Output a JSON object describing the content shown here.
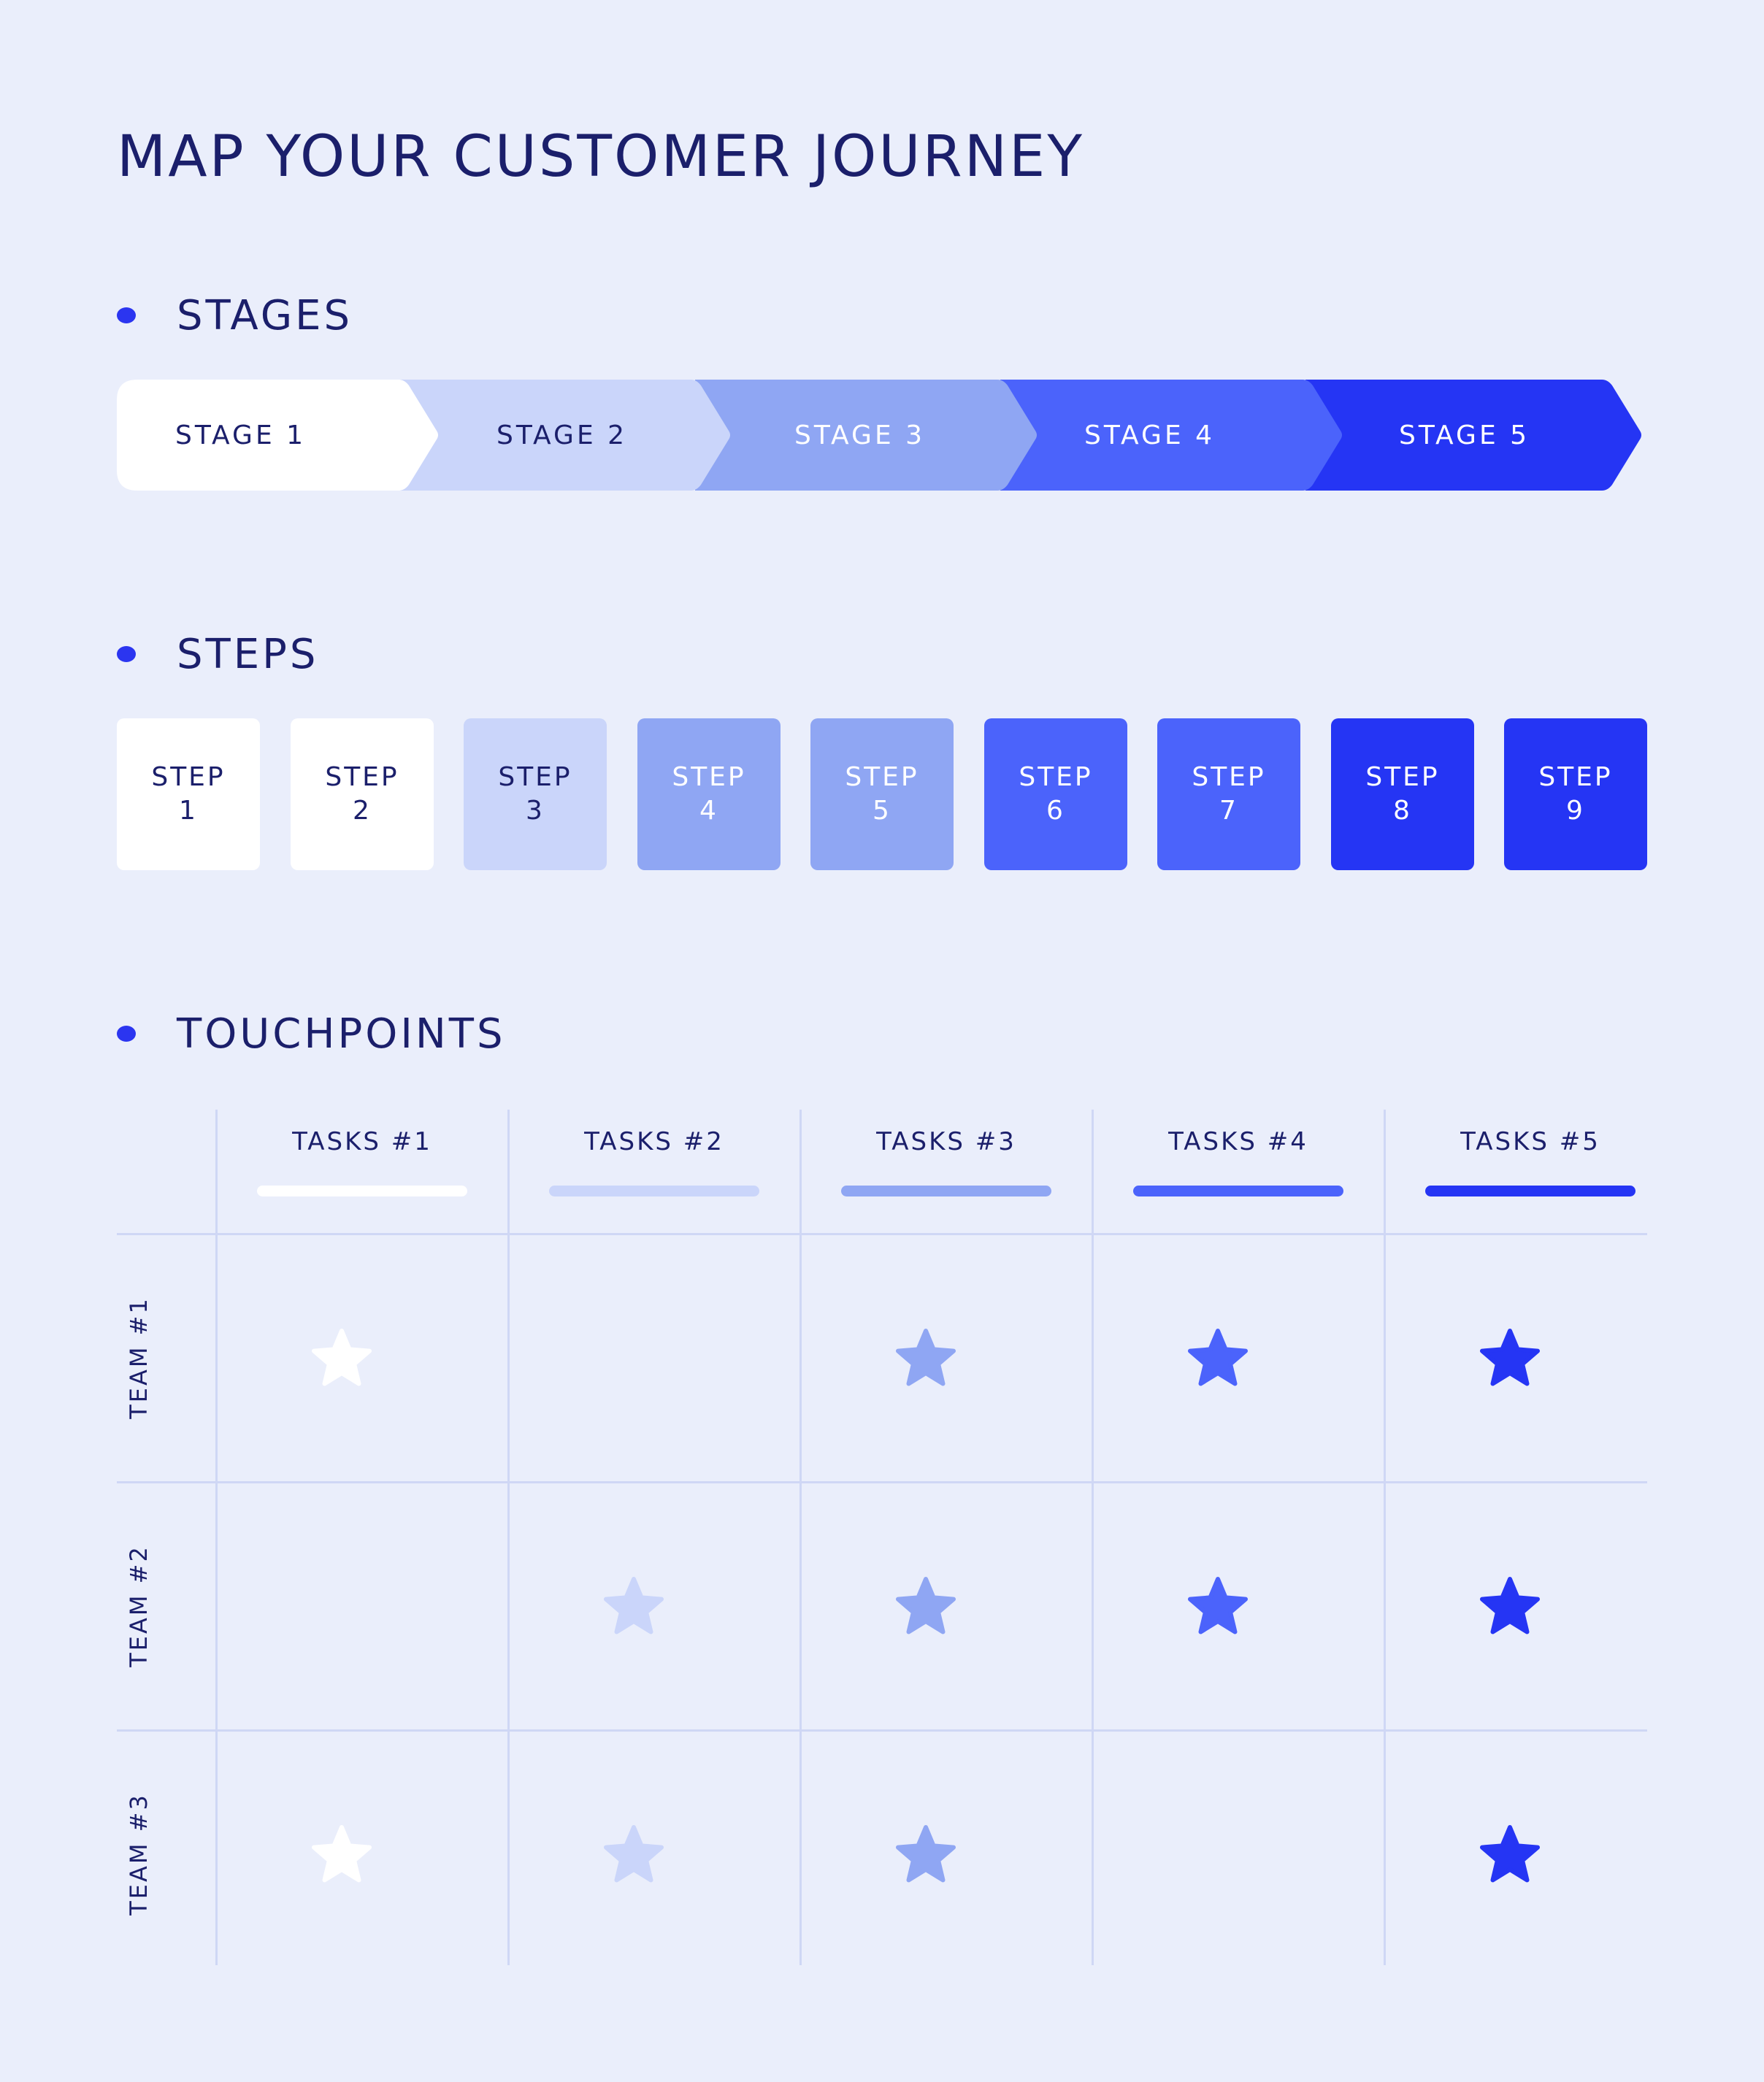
{
  "title": "MAP YOUR CUSTOMER JOURNEY",
  "sections": {
    "stages": "STAGES",
    "steps": "STEPS",
    "touchpoints": "TOUCHPOINTS"
  },
  "colors": {
    "background": "#eaeefb",
    "text_dark": "#1b1f6b",
    "bullet": "#2b35f0",
    "grid_line": "#cfd7f5",
    "shade_1": "#ffffff",
    "shade_2": "#cad5fa",
    "shade_3": "#8fa6f3",
    "shade_4": "#4b63fb",
    "shade_5": "#2535f4"
  },
  "stages": [
    {
      "label": "STAGE 1",
      "color": "#ffffff",
      "text_color": "#1b1f6b"
    },
    {
      "label": "STAGE 2",
      "color": "#cad5fa",
      "text_color": "#1b1f6b"
    },
    {
      "label": "STAGE 3",
      "color": "#8fa6f3",
      "text_color": "#ffffff"
    },
    {
      "label": "STAGE 4",
      "color": "#4b63fb",
      "text_color": "#ffffff"
    },
    {
      "label": "STAGE 5",
      "color": "#2535f4",
      "text_color": "#ffffff"
    }
  ],
  "steps": [
    {
      "word": "STEP",
      "num": "1",
      "color": "#ffffff",
      "text_color": "#1b1f6b"
    },
    {
      "word": "STEP",
      "num": "2",
      "color": "#ffffff",
      "text_color": "#1b1f6b"
    },
    {
      "word": "STEP",
      "num": "3",
      "color": "#cad5fa",
      "text_color": "#1b1f6b"
    },
    {
      "word": "STEP",
      "num": "4",
      "color": "#8fa6f3",
      "text_color": "#ffffff"
    },
    {
      "word": "STEP",
      "num": "5",
      "color": "#8fa6f3",
      "text_color": "#ffffff"
    },
    {
      "word": "STEP",
      "num": "6",
      "color": "#4b63fb",
      "text_color": "#ffffff"
    },
    {
      "word": "STEP",
      "num": "7",
      "color": "#4b63fb",
      "text_color": "#ffffff"
    },
    {
      "word": "STEP",
      "num": "8",
      "color": "#2535f4",
      "text_color": "#ffffff"
    },
    {
      "word": "STEP",
      "num": "9",
      "color": "#2535f4",
      "text_color": "#ffffff"
    }
  ],
  "touchpoints": {
    "columns": [
      {
        "label": "TASKS #1",
        "color": "#ffffff"
      },
      {
        "label": "TASKS #2",
        "color": "#cad5fa"
      },
      {
        "label": "TASKS #3",
        "color": "#8fa6f3"
      },
      {
        "label": "TASKS #4",
        "color": "#4b63fb"
      },
      {
        "label": "TASKS #5",
        "color": "#2535f4"
      }
    ],
    "rows": [
      {
        "label": "TEAM #1",
        "stars": [
          true,
          false,
          true,
          true,
          true
        ]
      },
      {
        "label": "TEAM #2",
        "stars": [
          false,
          true,
          true,
          true,
          true
        ]
      },
      {
        "label": "TEAM #3",
        "stars": [
          true,
          true,
          true,
          false,
          true
        ]
      }
    ]
  }
}
